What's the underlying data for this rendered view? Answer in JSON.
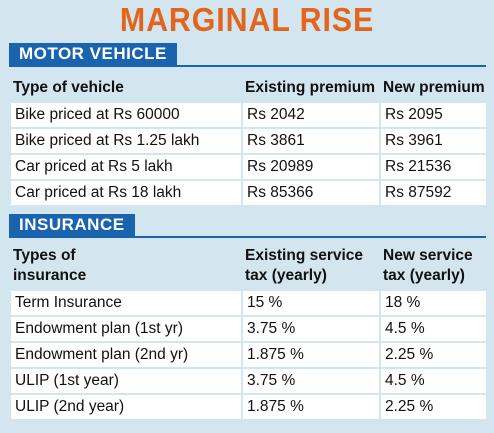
{
  "title": "MARGINAL RISE",
  "motor": {
    "section_label": "MOTOR VEHICLE",
    "headers": [
      "Type of vehicle",
      "Existing premium",
      "New premium"
    ],
    "rows": [
      [
        "Bike priced at Rs 60000",
        "Rs 2042",
        "Rs 2095"
      ],
      [
        "Bike priced at Rs 1.25 lakh",
        "Rs 3861",
        "Rs 3961"
      ],
      [
        "Car priced at Rs 5 lakh",
        "Rs 20989",
        "Rs 21536"
      ],
      [
        "Car priced at Rs 18 lakh",
        "Rs 85366",
        "Rs 87592"
      ]
    ]
  },
  "insurance": {
    "section_label": "INSURANCE",
    "headers": [
      [
        "Types of",
        "insurance"
      ],
      [
        "Existing service",
        "tax (yearly)"
      ],
      [
        "New service",
        "tax (yearly)"
      ]
    ],
    "rows": [
      [
        "Term Insurance",
        "15 %",
        "18 %"
      ],
      [
        "Endowment plan (1st yr)",
        "3.75 %",
        "4.5 %"
      ],
      [
        "Endowment plan (2nd yr)",
        "1.875 %",
        "2.25 %"
      ],
      [
        "ULIP (1st year)",
        "3.75 %",
        "4.5 %"
      ],
      [
        "ULIP (2nd year)",
        "1.875 %",
        "2.25 %"
      ]
    ]
  }
}
